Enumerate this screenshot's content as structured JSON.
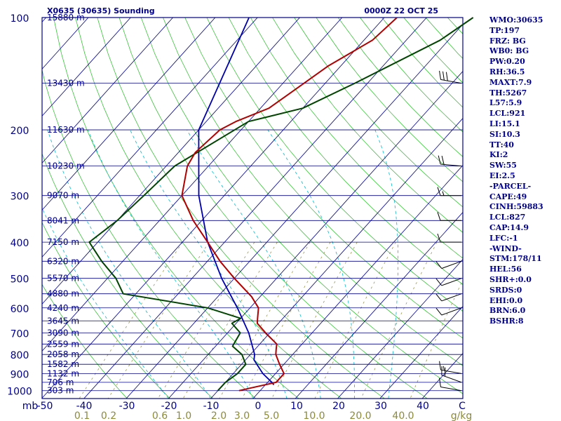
{
  "title": "X0635 (30635) Sounding",
  "valid_time": "0000Z 22 OCT 25",
  "colors": {
    "frame": "#00008b",
    "isobar": "#00008b",
    "isotherm": "#00008b",
    "dry_adiabat": "#22bb22",
    "moist_adiabat": "#00bbcc",
    "mixing_ratio": "#8b8b3a",
    "temperature": "#b00000",
    "dewpoint": "#004400",
    "parcel": "#0000aa",
    "wind": "#000000",
    "label": "#00008b",
    "mixing_label": "#8b8b3a"
  },
  "indices": [
    "WMO:30635",
    "TP:197",
    "FRZ: BG",
    "WB0: BG",
    "PW:0.20",
    "RH:36.5",
    "MAXT:7.9",
    "TH:5267",
    "L57:5.9",
    "LCL:921",
    "LI:15.1",
    "SI:10.3",
    "TT:40",
    "KI:2",
    "SW:55",
    "EI:2.5",
    "-PARCEL-",
    "CAPE:49",
    "CINH:59883",
    "LCL:827",
    "CAP:14.9",
    "LFC:-1",
    "-WIND-",
    "STM:178/11",
    "HEL:56",
    "SHR+:0.0",
    "SRDS:0",
    "EHI:0.0",
    "BRN:6.0",
    "BSHR:8"
  ],
  "chart_data": {
    "type": "skew-t",
    "x_unit_label": "mb",
    "y_ticks": [
      100,
      200,
      300,
      400,
      500,
      600,
      700,
      800,
      900,
      1000
    ],
    "temperature_ticks": [
      -50,
      -40,
      -30,
      -20,
      -10,
      0,
      10,
      20,
      30,
      40
    ],
    "temperature_tick_labels": [
      "-50",
      "-40",
      "-30",
      "-20",
      "-10",
      "0",
      "10",
      "20",
      "30",
      "40"
    ],
    "temperature_unit_label": "C",
    "mixing_ratio_ticks": [
      "0.1",
      "0.2",
      "0.6",
      "1.0",
      "2.0",
      "3.0",
      "5.0",
      "10.0",
      "20.0",
      "40.0"
    ],
    "mixing_ratio_unit_label": "g/kg",
    "heights": [
      {
        "p": 100,
        "label": "15880 m"
      },
      {
        "p": 150,
        "label": "13430 m"
      },
      {
        "p": 200,
        "label": "11630 m"
      },
      {
        "p": 250,
        "label": "10230 m"
      },
      {
        "p": 300,
        "label": "9070 m"
      },
      {
        "p": 350,
        "label": "8041 m"
      },
      {
        "p": 400,
        "label": "7150 m"
      },
      {
        "p": 450,
        "label": "6320 m"
      },
      {
        "p": 500,
        "label": "5570 m"
      },
      {
        "p": 550,
        "label": "4880 m"
      },
      {
        "p": 600,
        "label": "4240 m"
      },
      {
        "p": 650,
        "label": "3645 m"
      },
      {
        "p": 700,
        "label": "3090 m"
      },
      {
        "p": 750,
        "label": "2559 m"
      },
      {
        "p": 800,
        "label": "2058 m"
      },
      {
        "p": 850,
        "label": "1582 m"
      },
      {
        "p": 900,
        "label": "1132 m"
      },
      {
        "p": 950,
        "label": "706 m"
      },
      {
        "p": 1000,
        "label": "303 m"
      }
    ],
    "temperature": [
      {
        "p": 100,
        "t": -47
      },
      {
        "p": 115,
        "t": -48
      },
      {
        "p": 135,
        "t": -53
      },
      {
        "p": 150,
        "t": -55
      },
      {
        "p": 175,
        "t": -58
      },
      {
        "p": 190,
        "t": -63
      },
      {
        "p": 200,
        "t": -65
      },
      {
        "p": 230,
        "t": -66
      },
      {
        "p": 250,
        "t": -65
      },
      {
        "p": 300,
        "t": -60
      },
      {
        "p": 350,
        "t": -52
      },
      {
        "p": 400,
        "t": -44
      },
      {
        "p": 450,
        "t": -37
      },
      {
        "p": 500,
        "t": -30
      },
      {
        "p": 560,
        "t": -22
      },
      {
        "p": 600,
        "t": -18
      },
      {
        "p": 640,
        "t": -16
      },
      {
        "p": 660,
        "t": -15
      },
      {
        "p": 700,
        "t": -11
      },
      {
        "p": 750,
        "t": -6
      },
      {
        "p": 775,
        "t": -5
      },
      {
        "p": 800,
        "t": -4
      },
      {
        "p": 850,
        "t": -1
      },
      {
        "p": 900,
        "t": 2
      },
      {
        "p": 950,
        "t": 2
      },
      {
        "p": 1000,
        "t": -5
      }
    ],
    "dewpoint": [
      {
        "p": 100,
        "t": -29
      },
      {
        "p": 115,
        "t": -32
      },
      {
        "p": 150,
        "t": -43
      },
      {
        "p": 175,
        "t": -50
      },
      {
        "p": 190,
        "t": -60
      },
      {
        "p": 250,
        "t": -68
      },
      {
        "p": 300,
        "t": -69
      },
      {
        "p": 350,
        "t": -70
      },
      {
        "p": 400,
        "t": -72
      },
      {
        "p": 450,
        "t": -65
      },
      {
        "p": 500,
        "t": -58
      },
      {
        "p": 550,
        "t": -53
      },
      {
        "p": 600,
        "t": -30
      },
      {
        "p": 640,
        "t": -20
      },
      {
        "p": 660,
        "t": -21
      },
      {
        "p": 700,
        "t": -17
      },
      {
        "p": 760,
        "t": -16
      },
      {
        "p": 800,
        "t": -12
      },
      {
        "p": 850,
        "t": -9
      },
      {
        "p": 900,
        "t": -9
      },
      {
        "p": 950,
        "t": -10
      },
      {
        "p": 1000,
        "t": -10
      }
    ],
    "parcel": [
      {
        "p": 100,
        "t": -82
      },
      {
        "p": 200,
        "t": -70
      },
      {
        "p": 300,
        "t": -56
      },
      {
        "p": 400,
        "t": -44
      },
      {
        "p": 500,
        "t": -33
      },
      {
        "p": 600,
        "t": -23
      },
      {
        "p": 700,
        "t": -15
      },
      {
        "p": 800,
        "t": -9
      },
      {
        "p": 827,
        "t": -8
      },
      {
        "p": 900,
        "t": -3
      },
      {
        "p": 950,
        "t": 1
      },
      {
        "p": 965,
        "t": 2
      }
    ],
    "winds": [
      {
        "p": 150,
        "dir": 280,
        "spd": 30
      },
      {
        "p": 250,
        "dir": 275,
        "spd": 20
      },
      {
        "p": 300,
        "dir": 270,
        "spd": 15
      },
      {
        "p": 350,
        "dir": 270,
        "spd": 10
      },
      {
        "p": 400,
        "dir": 270,
        "spd": 10
      },
      {
        "p": 450,
        "dir": 250,
        "spd": 10
      },
      {
        "p": 500,
        "dir": 250,
        "spd": 10
      },
      {
        "p": 550,
        "dir": 250,
        "spd": 10
      },
      {
        "p": 600,
        "dir": 250,
        "spd": 10
      },
      {
        "p": 900,
        "dir": 280,
        "spd": 15
      },
      {
        "p": 950,
        "dir": 290,
        "spd": 20
      },
      {
        "p": 1000,
        "dir": 280,
        "spd": 10
      }
    ]
  }
}
